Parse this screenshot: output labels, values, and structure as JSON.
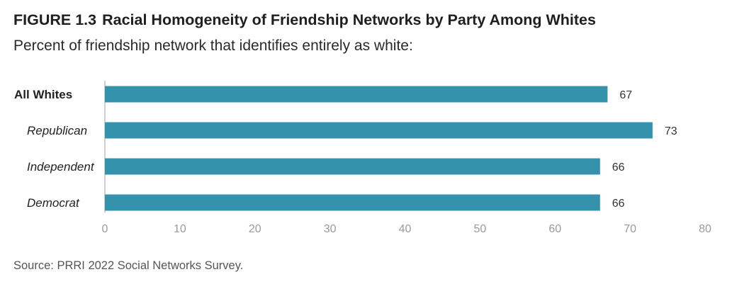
{
  "header": {
    "figure_label": "FIGURE 1.3",
    "title": "Racial Homogeneity of Friendship Networks by Party Among Whites",
    "subtitle": "Percent of friendship network that identifies entirely as white:"
  },
  "footer": {
    "source": "Source: PRRI 2022 Social Networks Survey."
  },
  "colors": {
    "bar": "#3592ad",
    "axis": "#cfcfcf",
    "tick_text": "#9a9a9a",
    "label_text": "#222222",
    "value_text": "#333333"
  },
  "chart_data": {
    "type": "bar",
    "orientation": "horizontal",
    "categories": [
      "All Whites",
      "Republican",
      "Independent",
      "Democrat"
    ],
    "category_styles": [
      "bold",
      "italic",
      "italic",
      "italic"
    ],
    "values": [
      67,
      73,
      66,
      66
    ],
    "data_labels": [
      "67",
      "73",
      "66",
      "66"
    ],
    "xlim": [
      0,
      80
    ],
    "xticks": [
      0,
      10,
      20,
      30,
      40,
      50,
      60,
      70,
      80
    ],
    "xlabel": "",
    "ylabel": "",
    "grid": false,
    "legend": "none"
  }
}
